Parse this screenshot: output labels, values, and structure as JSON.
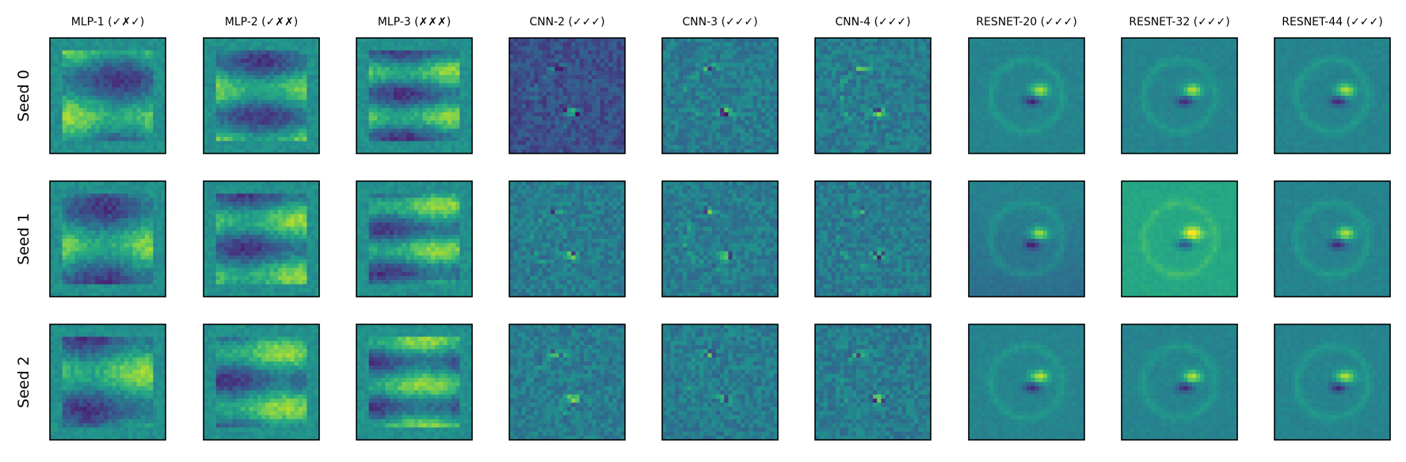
{
  "chart_data": {
    "type": "heatmap",
    "colormap": "viridis",
    "grid": false,
    "ticks": false,
    "columns": [
      {
        "title": "MLP-1 (✓✗✓)",
        "kind": "mlp"
      },
      {
        "title": "MLP-2 (✓✗✗)",
        "kind": "mlp"
      },
      {
        "title": "MLP-3 (✗✗✗)",
        "kind": "mlp"
      },
      {
        "title": "CNN-2 (✓✓✓)",
        "kind": "cnn"
      },
      {
        "title": "CNN-3 (✓✓✓)",
        "kind": "cnn"
      },
      {
        "title": "CNN-4 (✓✓✓)",
        "kind": "cnn"
      },
      {
        "title": "RESNET-20 (✓✓✓)",
        "kind": "resnet"
      },
      {
        "title": "RESNET-32 (✓✓✓)",
        "kind": "resnet"
      },
      {
        "title": "RESNET-44 (✓✓✓)",
        "kind": "resnet"
      }
    ],
    "rows": [
      {
        "label": "Seed 0"
      },
      {
        "label": "Seed 1"
      },
      {
        "label": "Seed 2"
      }
    ],
    "cell_resolution": [
      28,
      28
    ]
  }
}
